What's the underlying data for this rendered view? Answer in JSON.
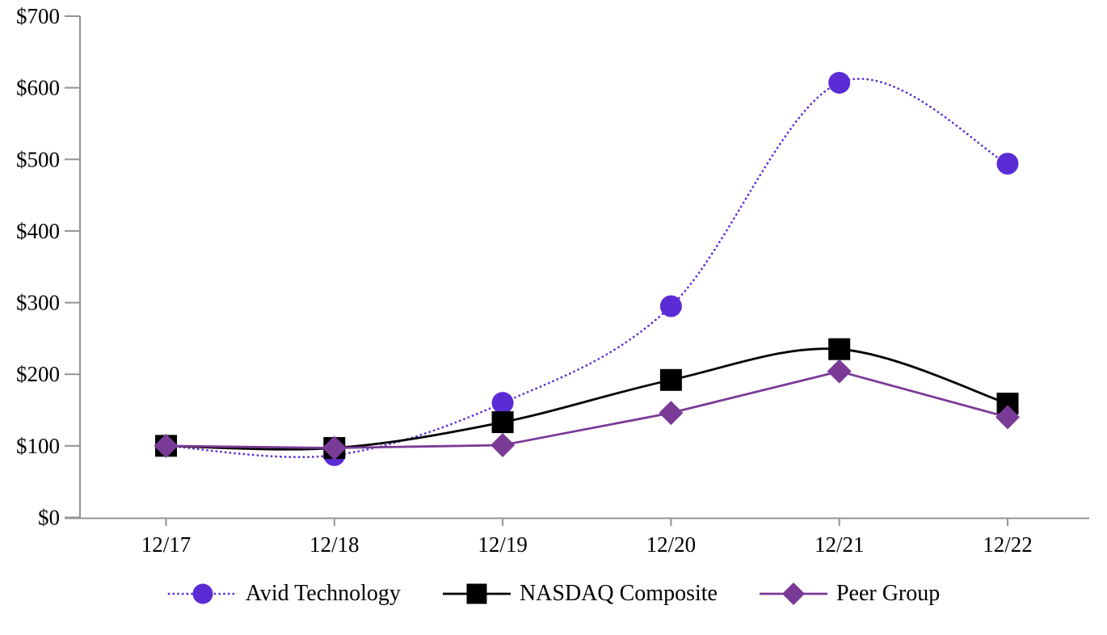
{
  "chart_data": {
    "type": "line",
    "title": "",
    "x_categories": [
      "12/17",
      "12/18",
      "12/19",
      "12/20",
      "12/21",
      "12/22"
    ],
    "series": [
      {
        "name": "Avid Technology",
        "values": [
          100,
          87,
          160,
          295,
          607,
          494
        ],
        "color": "#5B2CD5",
        "marker": "circle",
        "line_style": "dotted",
        "smooth": true
      },
      {
        "name": "NASDAQ Composite",
        "values": [
          100,
          97,
          133,
          192,
          235,
          159
        ],
        "color": "#000000",
        "marker": "square",
        "line_style": "solid",
        "smooth": true
      },
      {
        "name": "Peer Group",
        "values": [
          100,
          97,
          101,
          146,
          204,
          140
        ],
        "color": "#7A3B96",
        "marker": "diamond",
        "line_style": "solid",
        "smooth": false
      }
    ],
    "y_axis": {
      "min": 0,
      "max": 700,
      "step": 100,
      "prefix": "$",
      "tick_labels": [
        "$0",
        "$100",
        "$200",
        "$300",
        "$400",
        "$500",
        "$600",
        "$700"
      ]
    },
    "legend_position": "bottom",
    "grid": false,
    "axis_color": "#939393",
    "text_color": "#000000"
  }
}
